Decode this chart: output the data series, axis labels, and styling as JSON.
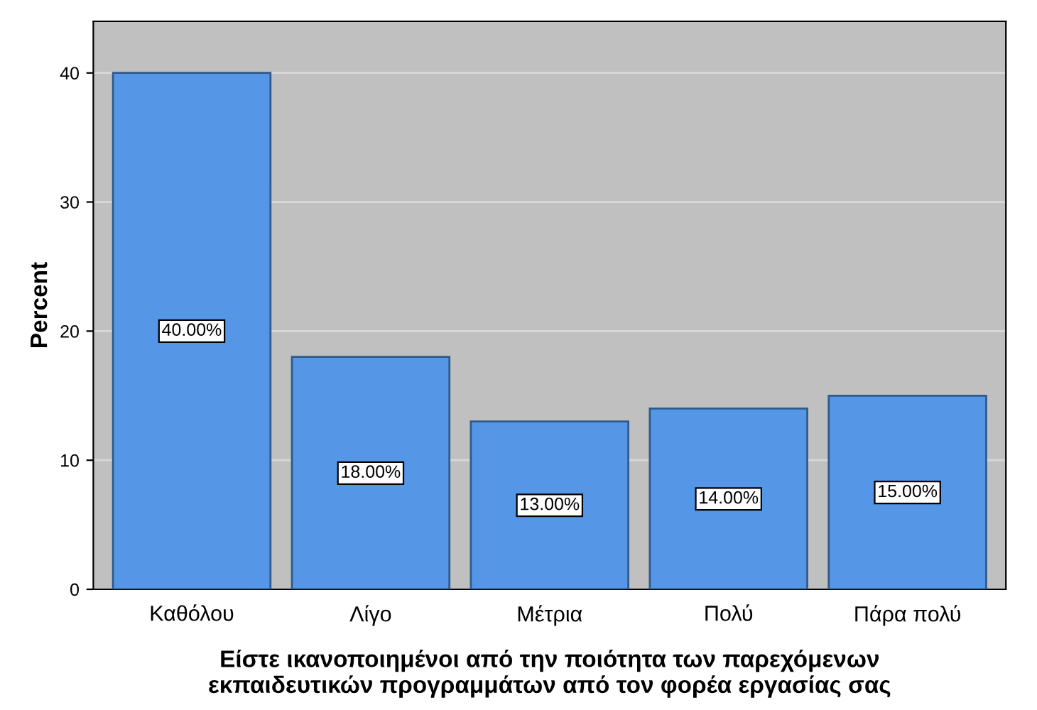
{
  "chart_data": {
    "type": "bar",
    "categories": [
      "Καθόλου",
      "Λίγο",
      "Μέτρια",
      "Πολύ",
      "Πάρα πολύ"
    ],
    "values": [
      40,
      18,
      13,
      14,
      15
    ],
    "value_labels": [
      "40.00%",
      "18.00%",
      "13.00%",
      "14.00%",
      "15.00%"
    ],
    "color": "#5597e6",
    "ylabel": "Percent",
    "xlabel": "Είστε ικανοποιημένοι από την ποιότητα των παρεχόμενων\nεκπαιδευτικών προγραμμάτων από τον φορέα εργασίας σας",
    "ylim": [
      0,
      44
    ],
    "yticks": [
      0,
      10,
      20,
      30,
      40
    ],
    "grid": "y"
  }
}
